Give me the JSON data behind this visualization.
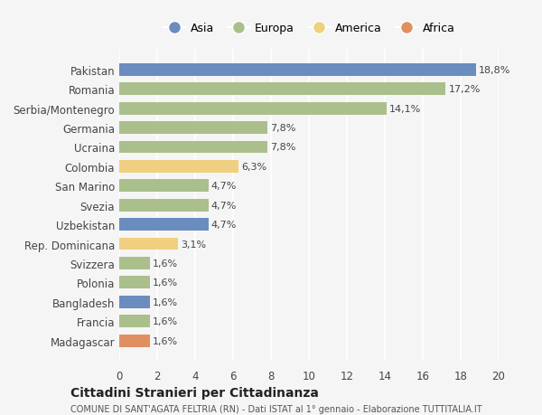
{
  "countries": [
    "Pakistan",
    "Romania",
    "Serbia/Montenegro",
    "Germania",
    "Ucraina",
    "Colombia",
    "San Marino",
    "Svezia",
    "Uzbekistan",
    "Rep. Dominicana",
    "Svizzera",
    "Polonia",
    "Bangladesh",
    "Francia",
    "Madagascar"
  ],
  "values": [
    18.8,
    17.2,
    14.1,
    7.8,
    7.8,
    6.3,
    4.7,
    4.7,
    4.7,
    3.1,
    1.6,
    1.6,
    1.6,
    1.6,
    1.6
  ],
  "labels": [
    "18,8%",
    "17,2%",
    "14,1%",
    "7,8%",
    "7,8%",
    "6,3%",
    "4,7%",
    "4,7%",
    "4,7%",
    "3,1%",
    "1,6%",
    "1,6%",
    "1,6%",
    "1,6%",
    "1,6%"
  ],
  "continents": [
    "Asia",
    "Europa",
    "Europa",
    "Europa",
    "Europa",
    "America",
    "Europa",
    "Europa",
    "Asia",
    "America",
    "Europa",
    "Europa",
    "Asia",
    "Europa",
    "Africa"
  ],
  "colors": {
    "Asia": "#6b8cbf",
    "Europa": "#aabf8c",
    "America": "#f0d080",
    "Africa": "#e09060"
  },
  "background_color": "#f5f5f5",
  "title": "Cittadini Stranieri per Cittadinanza",
  "subtitle": "COMUNE DI SANT'AGATA FELTRIA (RN) - Dati ISTAT al 1° gennaio - Elaborazione TUTTITALIA.IT",
  "xlim": [
    0,
    20
  ],
  "xticks": [
    0,
    2,
    4,
    6,
    8,
    10,
    12,
    14,
    16,
    18,
    20
  ],
  "legend_order": [
    "Asia",
    "Europa",
    "America",
    "Africa"
  ]
}
